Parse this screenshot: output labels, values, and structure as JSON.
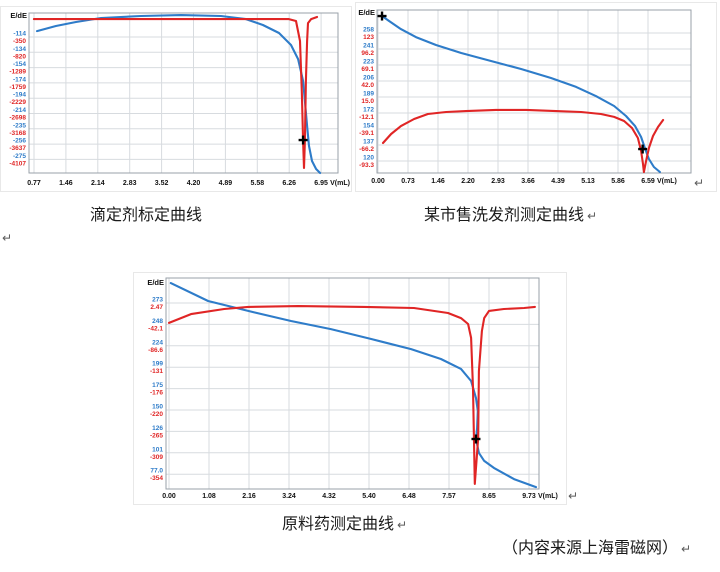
{
  "page": {
    "captions": {
      "c1": "滴定剂标定曲线",
      "c2": "某市售洗发剂测定曲线",
      "c3": "原料药测定曲线"
    },
    "source": "（内容来源上海雷磁网）",
    "return_mark": "↵"
  },
  "colors": {
    "blue": "#2E7CC9",
    "red": "#E02525",
    "grid": "#D7DBDF",
    "plot_border": "#99A1A9",
    "marker": "#000000"
  },
  "chart_data": [
    {
      "type": "line",
      "title": "滴定剂标定曲线",
      "axis_label": "E/dE",
      "x_label": "V(mL)",
      "grid": "on",
      "legend_position": "none",
      "x_ticks": [
        "0.77",
        "1.46",
        "2.14",
        "2.83",
        "3.52",
        "4.20",
        "4.89",
        "5.58",
        "6.26",
        "6.95"
      ],
      "y_ticks_blue": [
        "-114",
        "-134",
        "-154",
        "-174",
        "-194",
        "-214",
        "-235",
        "-256",
        "-275"
      ],
      "y_ticks_red": [
        "-350",
        "-820",
        "-1289",
        "-1759",
        "-2229",
        "-2698",
        "-3168",
        "-3637",
        "-4107"
      ],
      "y_axis_note": "dual axis: E in blue, dE in red; curve shapes stored as normalized plot fractions [x,y]",
      "series": [
        {
          "name": "E-curve",
          "color": "blue",
          "shape_norm": [
            [
              0.026,
              0.113
            ],
            [
              0.087,
              0.081
            ],
            [
              0.152,
              0.056
            ],
            [
              0.233,
              0.031
            ],
            [
              0.362,
              0.019
            ],
            [
              0.492,
              0.013
            ],
            [
              0.621,
              0.019
            ],
            [
              0.702,
              0.038
            ],
            [
              0.757,
              0.075
            ],
            [
              0.809,
              0.125
            ],
            [
              0.848,
              0.2
            ],
            [
              0.871,
              0.288
            ],
            [
              0.887,
              0.425
            ],
            [
              0.893,
              0.55
            ],
            [
              0.9,
              0.706
            ],
            [
              0.906,
              0.831
            ],
            [
              0.916,
              0.925
            ],
            [
              0.929,
              0.975
            ],
            [
              0.942,
              1.0
            ]
          ]
        },
        {
          "name": "dE-curve",
          "color": "red",
          "shape_norm": [
            [
              0.016,
              0.038
            ],
            [
              0.201,
              0.038
            ],
            [
              0.557,
              0.038
            ],
            [
              0.841,
              0.038
            ],
            [
              0.864,
              0.05
            ],
            [
              0.877,
              0.175
            ],
            [
              0.883,
              0.488
            ],
            [
              0.887,
              0.8
            ],
            [
              0.89,
              0.969
            ],
            [
              0.893,
              0.8
            ],
            [
              0.896,
              0.425
            ],
            [
              0.9,
              0.175
            ],
            [
              0.903,
              0.063
            ],
            [
              0.913,
              0.038
            ],
            [
              0.932,
              0.025
            ]
          ]
        }
      ],
      "markers": [
        {
          "type": "plus",
          "label": "endpoint",
          "at": [
            0.887,
            0.794
          ]
        }
      ]
    },
    {
      "type": "line",
      "title": "某市售洗发剂测定曲线",
      "axis_label": "E/dE",
      "x_label": "V(mL)",
      "grid": "on",
      "legend_position": "none",
      "x_ticks": [
        "0.00",
        "0.73",
        "1.46",
        "2.20",
        "2.93",
        "3.66",
        "4.39",
        "5.13",
        "5.86",
        "6.59"
      ],
      "y_ticks_blue": [
        "258",
        "241",
        "223",
        "206",
        "189",
        "172",
        "154",
        "137",
        "120"
      ],
      "y_ticks_red": [
        "123",
        "96.2",
        "69.1",
        "42.0",
        "15.0",
        "-12.1",
        "-39.1",
        "-66.2",
        "-93.3"
      ],
      "y_axis_note": "dual axis: E in blue, dE in red; curve shapes stored as normalized plot fractions [x,y]",
      "series": [
        {
          "name": "E-curve",
          "color": "blue",
          "shape_norm": [
            [
              0.016,
              0.037
            ],
            [
              0.038,
              0.067
            ],
            [
              0.076,
              0.117
            ],
            [
              0.124,
              0.166
            ],
            [
              0.188,
              0.215
            ],
            [
              0.268,
              0.264
            ],
            [
              0.363,
              0.313
            ],
            [
              0.459,
              0.362
            ],
            [
              0.554,
              0.417
            ],
            [
              0.634,
              0.472
            ],
            [
              0.697,
              0.528
            ],
            [
              0.755,
              0.589
            ],
            [
              0.793,
              0.65
            ],
            [
              0.822,
              0.712
            ],
            [
              0.841,
              0.779
            ],
            [
              0.854,
              0.853
            ],
            [
              0.866,
              0.914
            ],
            [
              0.882,
              0.963
            ],
            [
              0.901,
              0.994
            ]
          ]
        },
        {
          "name": "dE-curve",
          "color": "red",
          "shape_norm": [
            [
              0.019,
              0.816
            ],
            [
              0.045,
              0.761
            ],
            [
              0.076,
              0.712
            ],
            [
              0.118,
              0.669
            ],
            [
              0.162,
              0.638
            ],
            [
              0.22,
              0.626
            ],
            [
              0.283,
              0.62
            ],
            [
              0.379,
              0.613
            ],
            [
              0.475,
              0.613
            ],
            [
              0.57,
              0.62
            ],
            [
              0.65,
              0.626
            ],
            [
              0.713,
              0.638
            ],
            [
              0.755,
              0.656
            ],
            [
              0.787,
              0.681
            ],
            [
              0.812,
              0.724
            ],
            [
              0.831,
              0.785
            ],
            [
              0.841,
              0.865
            ],
            [
              0.847,
              0.945
            ],
            [
              0.85,
              0.994
            ],
            [
              0.857,
              0.926
            ],
            [
              0.866,
              0.847
            ],
            [
              0.879,
              0.773
            ],
            [
              0.895,
              0.718
            ],
            [
              0.911,
              0.675
            ]
          ]
        }
      ],
      "markers": [
        {
          "type": "plus",
          "label": "start-point",
          "at": [
            0.016,
            0.037
          ]
        },
        {
          "type": "plus",
          "label": "endpoint",
          "at": [
            0.846,
            0.853
          ]
        }
      ]
    },
    {
      "type": "line",
      "title": "原料药测定曲线",
      "axis_label": "E/dE",
      "x_label": "V(mL)",
      "grid": "on",
      "legend_position": "none",
      "x_ticks": [
        "0.00",
        "1.08",
        "2.16",
        "3.24",
        "4.32",
        "5.40",
        "6.48",
        "7.57",
        "8.65",
        "9.73"
      ],
      "y_ticks_blue": [
        "273",
        "248",
        "224",
        "199",
        "175",
        "150",
        "126",
        "101",
        "77.0"
      ],
      "y_ticks_red": [
        "2.47",
        "-42.1",
        "-86.6",
        "-131",
        "-176",
        "-220",
        "-265",
        "-309",
        "-354"
      ],
      "y_axis_note": "dual axis: E in blue, dE in red; curve shapes stored as normalized plot fractions [x,y]",
      "series": [
        {
          "name": "E-curve",
          "color": "blue",
          "shape_norm": [
            [
              0.013,
              0.024
            ],
            [
              0.113,
              0.109
            ],
            [
              0.22,
              0.156
            ],
            [
              0.335,
              0.204
            ],
            [
              0.442,
              0.242
            ],
            [
              0.55,
              0.289
            ],
            [
              0.657,
              0.337
            ],
            [
              0.737,
              0.384
            ],
            [
              0.791,
              0.431
            ],
            [
              0.818,
              0.488
            ],
            [
              0.831,
              0.569
            ],
            [
              0.836,
              0.63
            ],
            [
              0.834,
              0.711
            ],
            [
              0.831,
              0.763
            ],
            [
              0.839,
              0.829
            ],
            [
              0.853,
              0.867
            ],
            [
              0.879,
              0.9
            ],
            [
              0.933,
              0.953
            ],
            [
              0.992,
              0.991
            ]
          ]
        },
        {
          "name": "dE-curve",
          "color": "red",
          "shape_norm": [
            [
              0.008,
              0.213
            ],
            [
              0.067,
              0.171
            ],
            [
              0.156,
              0.147
            ],
            [
              0.22,
              0.137
            ],
            [
              0.354,
              0.133
            ],
            [
              0.531,
              0.137
            ],
            [
              0.665,
              0.142
            ],
            [
              0.756,
              0.166
            ],
            [
              0.791,
              0.19
            ],
            [
              0.81,
              0.218
            ],
            [
              0.818,
              0.284
            ],
            [
              0.823,
              0.521
            ],
            [
              0.828,
              0.976
            ],
            [
              0.837,
              0.758
            ],
            [
              0.839,
              0.441
            ],
            [
              0.847,
              0.251
            ],
            [
              0.853,
              0.19
            ],
            [
              0.866,
              0.156
            ],
            [
              0.906,
              0.147
            ],
            [
              0.96,
              0.142
            ],
            [
              0.989,
              0.137
            ]
          ]
        }
      ],
      "markers": [
        {
          "type": "plus",
          "label": "endpoint",
          "at": [
            0.831,
            0.763
          ]
        }
      ]
    }
  ]
}
